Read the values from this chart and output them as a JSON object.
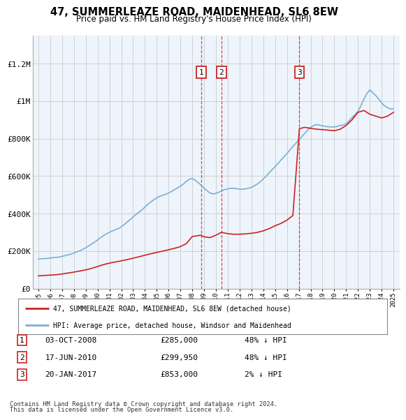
{
  "title": "47, SUMMERLEAZE ROAD, MAIDENHEAD, SL6 8EW",
  "subtitle": "Price paid vs. HM Land Registry's House Price Index (HPI)",
  "legend_line1": "47, SUMMERLEAZE ROAD, MAIDENHEAD, SL6 8EW (detached house)",
  "legend_line2": "HPI: Average price, detached house, Windsor and Maidenhead",
  "footer1": "Contains HM Land Registry data © Crown copyright and database right 2024.",
  "footer2": "This data is licensed under the Open Government Licence v3.0.",
  "transactions": [
    {
      "label": "1",
      "date": "03-OCT-2008",
      "price": "285,000",
      "pct": "48%",
      "dir": "↓",
      "x_year": 2008.75
    },
    {
      "label": "2",
      "date": "17-JUN-2010",
      "price": "299,950",
      "pct": "48%",
      "dir": "↓",
      "x_year": 2010.46
    },
    {
      "label": "3",
      "date": "20-JAN-2017",
      "price": "853,000",
      "pct": "2%",
      "dir": "↓",
      "x_year": 2017.05
    }
  ],
  "xlim": [
    1994.5,
    2025.5
  ],
  "ylim": [
    0,
    1350000
  ],
  "yticks": [
    0,
    200000,
    400000,
    600000,
    800000,
    1000000,
    1200000
  ],
  "ytick_labels": [
    "£0",
    "£200K",
    "£400K",
    "£600K",
    "£800K",
    "£1M",
    "£1.2M"
  ],
  "hpi_color": "#7bafd4",
  "price_color": "#cc2222",
  "shade_color": "#ddeeff",
  "grid_color": "#cccccc",
  "bg_color": "#ffffff",
  "hpi_data_x": [
    1995,
    1995.25,
    1995.5,
    1995.75,
    1996,
    1996.25,
    1996.5,
    1996.75,
    1997,
    1997.25,
    1997.5,
    1997.75,
    1998,
    1998.25,
    1998.5,
    1998.75,
    1999,
    1999.25,
    1999.5,
    1999.75,
    2000,
    2000.25,
    2000.5,
    2000.75,
    2001,
    2001.25,
    2001.5,
    2001.75,
    2002,
    2002.25,
    2002.5,
    2002.75,
    2003,
    2003.25,
    2003.5,
    2003.75,
    2004,
    2004.25,
    2004.5,
    2004.75,
    2005,
    2005.25,
    2005.5,
    2005.75,
    2006,
    2006.25,
    2006.5,
    2006.75,
    2007,
    2007.25,
    2007.5,
    2007.75,
    2008,
    2008.25,
    2008.5,
    2008.75,
    2009,
    2009.25,
    2009.5,
    2009.75,
    2010,
    2010.25,
    2010.5,
    2010.75,
    2011,
    2011.25,
    2011.5,
    2011.75,
    2012,
    2012.25,
    2012.5,
    2012.75,
    2013,
    2013.25,
    2013.5,
    2013.75,
    2014,
    2014.25,
    2014.5,
    2014.75,
    2015,
    2015.25,
    2015.5,
    2015.75,
    2016,
    2016.25,
    2016.5,
    2016.75,
    2017,
    2017.25,
    2017.5,
    2017.75,
    2018,
    2018.25,
    2018.5,
    2018.75,
    2019,
    2019.25,
    2019.5,
    2019.75,
    2020,
    2020.25,
    2020.5,
    2020.75,
    2021,
    2021.25,
    2021.5,
    2021.75,
    2022,
    2022.25,
    2022.5,
    2022.75,
    2023,
    2023.25,
    2023.5,
    2023.75,
    2024,
    2024.25,
    2024.5,
    2024.75,
    2025
  ],
  "hpi_data_y": [
    158000,
    159000,
    160000,
    161000,
    163000,
    165000,
    167000,
    168000,
    172000,
    176000,
    180000,
    184000,
    190000,
    196000,
    202000,
    210000,
    218000,
    228000,
    238000,
    248000,
    260000,
    272000,
    282000,
    292000,
    300000,
    308000,
    314000,
    320000,
    330000,
    342000,
    355000,
    368000,
    382000,
    396000,
    408000,
    420000,
    435000,
    450000,
    462000,
    474000,
    484000,
    492000,
    498000,
    503000,
    510000,
    518000,
    528000,
    537000,
    546000,
    558000,
    572000,
    583000,
    588000,
    578000,
    565000,
    552000,
    535000,
    522000,
    510000,
    505000,
    508000,
    514000,
    522000,
    528000,
    532000,
    535000,
    535000,
    533000,
    530000,
    530000,
    532000,
    535000,
    540000,
    548000,
    558000,
    570000,
    585000,
    600000,
    618000,
    635000,
    650000,
    668000,
    686000,
    703000,
    720000,
    740000,
    758000,
    775000,
    792000,
    810000,
    828000,
    845000,
    860000,
    870000,
    875000,
    872000,
    868000,
    865000,
    863000,
    862000,
    862000,
    865000,
    870000,
    872000,
    880000,
    895000,
    912000,
    928000,
    945000,
    975000,
    1010000,
    1040000,
    1060000,
    1045000,
    1030000,
    1010000,
    990000,
    975000,
    965000,
    958000,
    960000
  ],
  "price_data_x": [
    1995,
    1995.5,
    1996,
    1996.5,
    1997,
    1997.5,
    1998,
    1998.5,
    1999,
    1999.5,
    2000,
    2000.5,
    2001,
    2001.5,
    2002,
    2002.5,
    2003,
    2003.5,
    2004,
    2004.5,
    2005,
    2005.5,
    2006,
    2006.5,
    2007,
    2007.5,
    2008,
    2008.75,
    2009,
    2009.5,
    2010,
    2010.46,
    2011,
    2011.5,
    2012,
    2012.5,
    2013,
    2013.5,
    2014,
    2014.5,
    2015,
    2015.5,
    2016,
    2016.5,
    2017.05,
    2017.5,
    2018,
    2018.5,
    2019,
    2019.5,
    2020,
    2020.5,
    2021,
    2021.5,
    2022,
    2022.5,
    2023,
    2023.5,
    2024,
    2024.5,
    2025
  ],
  "price_data_y": [
    68000,
    70000,
    72000,
    74000,
    78000,
    83000,
    88000,
    94000,
    100000,
    108000,
    118000,
    128000,
    136000,
    142000,
    148000,
    155000,
    162000,
    170000,
    178000,
    186000,
    193000,
    200000,
    207000,
    215000,
    224000,
    240000,
    278000,
    285000,
    276000,
    272000,
    285000,
    299950,
    293000,
    290000,
    290000,
    292000,
    295000,
    300000,
    308000,
    320000,
    335000,
    348000,
    365000,
    390000,
    853000,
    860000,
    855000,
    850000,
    848000,
    845000,
    842000,
    850000,
    870000,
    900000,
    940000,
    950000,
    930000,
    920000,
    910000,
    920000,
    940000
  ]
}
